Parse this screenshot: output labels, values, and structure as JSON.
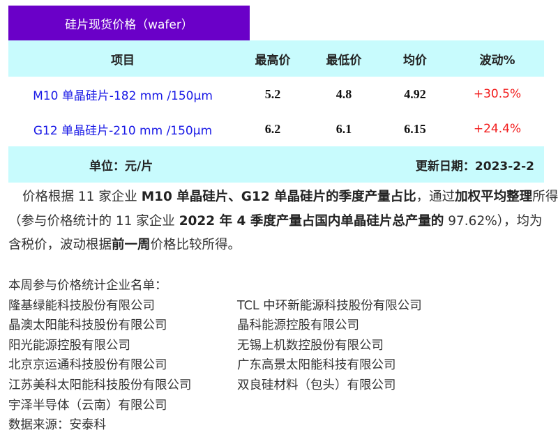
{
  "title": "硅片现货价格（wafer）",
  "table": {
    "headers": [
      "项目",
      "最高价",
      "最低价",
      "均价",
      "波动%"
    ],
    "rows": [
      {
        "item": "M10 单晶硅片-182 mm /150μm",
        "high": "5.2",
        "low": "4.8",
        "avg": "4.92",
        "change": "+30.5%"
      },
      {
        "item": "G12 单晶硅片-210 mm /150μm",
        "high": "6.2",
        "low": "6.1",
        "avg": "6.15",
        "change": "+24.4%"
      }
    ],
    "unit": "单位：元/片",
    "updated": "更新日期：2023-2-2"
  },
  "paragraph": {
    "l1": [
      "价格根据 11 家企业 ",
      "M10 单晶硅片、G12 单晶硅片的季度产量占比",
      "，通过",
      "加权平均整理",
      "所得"
    ],
    "l2": [
      "（参与价格统计的 11 家企业 ",
      "2022 年 4 季度产量占国内单晶硅片总产量的",
      "97.62%），均为"
    ],
    "l3": [
      "含税价，波动根据",
      "前一周",
      "价格比较所得。"
    ]
  },
  "list_title": "本周参与价格统计企业名单：",
  "companies_left": [
    "隆基绿能科技股份有限公司",
    "晶澳太阳能科技股份有限公司",
    "阳光能源控股有限公司",
    "北京京运通科技股份有限公司",
    "江苏美科太阳能科技股份有限公司",
    "宇泽半导体（云南）有限公司"
  ],
  "companies_right": [
    "TCL 中环新能源科技股份有限公司",
    "晶科能源控股有限公司",
    "无锡上机数控股份有限公司",
    "广东高景太阳能科技有限公司",
    "双良硅材料（包头）有限公司"
  ],
  "source": "数据来源：安泰科",
  "colors": {
    "title_bg": "#6a00c8",
    "header_bg": "#c8fbfd",
    "item_text": "#1a1ae6",
    "change_text": "#f21c1c"
  }
}
